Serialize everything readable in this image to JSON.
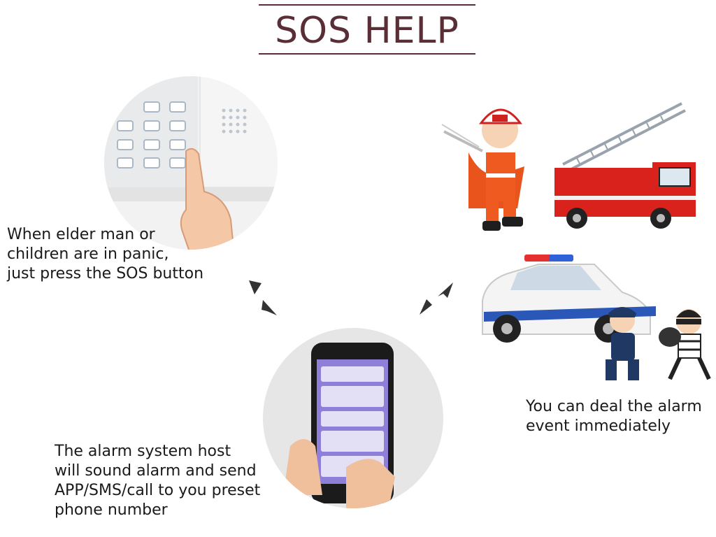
{
  "title": "SOS HELP",
  "captions": {
    "press": [
      "When elder man or",
      "children are in panic,",
      "just press the SOS button"
    ],
    "alarm": [
      "The alarm system host",
      "will sound alarm and send",
      "APP/SMS/call to you preset",
      "phone number"
    ],
    "deal": [
      "You can deal the alarm",
      "event immediately"
    ]
  },
  "colors": {
    "title": "#5a2e36",
    "truck_red": "#d9221c",
    "police_blue": "#2b58b8"
  }
}
